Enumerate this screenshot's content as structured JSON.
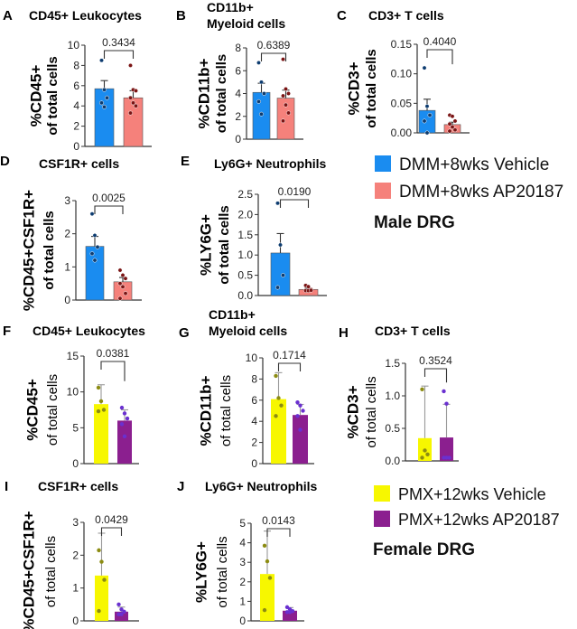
{
  "colors": {
    "vehicle_male": "#1a8cf0",
    "ap_male": "#f5817b",
    "vehicle_male_dot": "#0d3c70",
    "ap_male_dot": "#7a1414",
    "vehicle_female": "#f7f700",
    "ap_female": "#8b1f8f",
    "vehicle_female_dot": "#8c8c12",
    "ap_female_dot": "#6a30d0"
  },
  "legends": [
    {
      "items": [
        {
          "label": "DMM+8wks Vehicle",
          "color": "#1a8cf0"
        },
        {
          "label": "DMM+8wks AP20187",
          "color": "#f5817b"
        }
      ],
      "caption": "Male DRG"
    },
    {
      "items": [
        {
          "label": "PMX+12wks Vehicle",
          "color": "#f7f700"
        },
        {
          "label": "PMX+12wks AP20187",
          "color": "#8b1f8f"
        }
      ],
      "caption": "Female DRG"
    }
  ],
  "chart_data": [
    {
      "type": "bar",
      "letter": "A",
      "title": [
        "CD45+ Leukocytes"
      ],
      "ylabel": [
        "%CD45+",
        "of total cells"
      ],
      "ylim": [
        0,
        10
      ],
      "ticks": [
        0,
        2,
        4,
        6,
        8,
        10
      ],
      "tick_labels": [
        "0",
        "2",
        "4",
        "6",
        "8",
        "10"
      ],
      "pvalue": "0.3434",
      "group": "male",
      "series": [
        {
          "name": "DMM+8wks Vehicle",
          "mean": 5.7,
          "error": 0.8,
          "points": [
            8.5,
            5.6,
            4.8,
            4.3,
            3.9
          ]
        },
        {
          "name": "DMM+8wks AP20187",
          "mean": 4.8,
          "error": 0.7,
          "points": [
            8.0,
            5.6,
            5.5,
            4.8,
            4.3,
            4.0,
            3.3
          ]
        }
      ]
    },
    {
      "type": "bar",
      "letter": "B",
      "title": [
        "CD11b+",
        "Myeloid cells"
      ],
      "ylabel": [
        "%CD11b+",
        "of total cells"
      ],
      "ylim": [
        0,
        8
      ],
      "ticks": [
        0,
        2,
        4,
        6,
        8
      ],
      "tick_labels": [
        "0",
        "2",
        "4",
        "6",
        "8"
      ],
      "pvalue": "0.6389",
      "group": "male",
      "series": [
        {
          "name": "DMM+8wks Vehicle",
          "mean": 4.1,
          "error": 0.8,
          "points": [
            6.7,
            5.0,
            4.0,
            3.3,
            2.2
          ]
        },
        {
          "name": "DMM+8wks AP20187",
          "mean": 3.6,
          "error": 0.7,
          "points": [
            7.0,
            4.4,
            4.0,
            3.8,
            3.0,
            2.3,
            1.6
          ]
        }
      ]
    },
    {
      "type": "bar",
      "letter": "C",
      "title": [
        "CD3+ T cells"
      ],
      "ylabel": [
        "%CD3+",
        "of total cells"
      ],
      "ylim": [
        0,
        0.15
      ],
      "ticks": [
        0,
        0.05,
        0.1,
        0.15
      ],
      "tick_labels": [
        "0.00",
        "0.05",
        "0.10",
        "0.15"
      ],
      "pvalue": "0.4040",
      "group": "male",
      "series": [
        {
          "name": "DMM+8wks Vehicle",
          "mean": 0.038,
          "error": 0.019,
          "points": [
            0.11,
            0.045,
            0.03,
            0.02,
            0.0
          ]
        },
        {
          "name": "DMM+8wks AP20187",
          "mean": 0.014,
          "error": 0.004,
          "points": [
            0.03,
            0.028,
            0.02,
            0.015,
            0.01,
            0.005,
            0.003
          ]
        }
      ]
    },
    {
      "type": "bar",
      "letter": "D",
      "title": [
        "CSF1R+ cells"
      ],
      "ylabel": [
        "%CD45+CSF1R+",
        "of total cells"
      ],
      "ylim": [
        0,
        3
      ],
      "ticks": [
        0,
        1,
        2,
        3
      ],
      "tick_labels": [
        "0",
        "1",
        "2",
        "3"
      ],
      "pvalue": "0.0025",
      "group": "male",
      "series": [
        {
          "name": "DMM+8wks Vehicle",
          "mean": 1.62,
          "error": 0.3,
          "points": [
            2.6,
            1.95,
            1.6,
            1.4,
            1.2
          ]
        },
        {
          "name": "DMM+8wks AP20187",
          "mean": 0.55,
          "error": 0.13,
          "points": [
            0.9,
            0.75,
            0.65,
            0.5,
            0.4,
            0.2,
            0.05
          ]
        }
      ]
    },
    {
      "type": "bar",
      "letter": "E",
      "title": [
        "Ly6G+ Neutrophils"
      ],
      "ylabel": [
        "%LY6G+",
        "of total cells"
      ],
      "ylim": [
        0,
        2.5
      ],
      "ticks": [
        0,
        0.5,
        1,
        1.5,
        2,
        2.5
      ],
      "tick_labels": [
        "0.0",
        "0.5",
        "1.0",
        "1.5",
        "2.0",
        "2.5"
      ],
      "pvalue": "0.0190",
      "group": "male",
      "series": [
        {
          "name": "DMM+8wks Vehicle",
          "mean": 1.05,
          "error": 0.48,
          "points": [
            2.28,
            1.25,
            0.5,
            0.2
          ]
        },
        {
          "name": "DMM+8wks AP20187",
          "mean": 0.15,
          "error": 0.03,
          "points": [
            0.25,
            0.22,
            0.15,
            0.12,
            0.12,
            0.13
          ]
        }
      ]
    },
    {
      "type": "bar",
      "letter": "F",
      "title": [
        "CD45+ Leukocytes"
      ],
      "ylabel": [
        "%CD45+",
        "of total cells"
      ],
      "ylim": [
        0,
        15
      ],
      "ticks": [
        0,
        5,
        10,
        15
      ],
      "tick_labels": [
        "0",
        "5",
        "10",
        "15"
      ],
      "pvalue": "0.0381",
      "group": "female",
      "series": [
        {
          "name": "PMX+12wks Vehicle",
          "mean": 8.3,
          "error": 2.7,
          "points": [
            10.6,
            8.7,
            7.5,
            7.3
          ]
        },
        {
          "name": "PMX+12wks AP20187",
          "mean": 6.0,
          "error": 1.5,
          "points": [
            7.8,
            7.0,
            6.3,
            5.5,
            3.8
          ]
        }
      ]
    },
    {
      "type": "bar",
      "letter": "G",
      "title": [
        "CD11b+",
        "Myeloid cells"
      ],
      "ylabel": [
        "%CD11b+",
        "of total cells"
      ],
      "ylim": [
        0,
        10
      ],
      "ticks": [
        0,
        2,
        4,
        6,
        8,
        10
      ],
      "tick_labels": [
        "0",
        "2",
        "4",
        "6",
        "8",
        "10"
      ],
      "pvalue": "0.1714",
      "group": "female",
      "series": [
        {
          "name": "PMX+12wks Vehicle",
          "mean": 6.1,
          "error": 2.5,
          "points": [
            8.3,
            6.2,
            5.5,
            4.5
          ]
        },
        {
          "name": "PMX+12wks AP20187",
          "mean": 4.6,
          "error": 1.0,
          "points": [
            5.8,
            5.5,
            5.0,
            4.5,
            3.2
          ]
        }
      ]
    },
    {
      "type": "bar",
      "letter": "H",
      "title": [
        "CD3+ T cells"
      ],
      "ylabel": [
        "%CD3+",
        "of total cells"
      ],
      "ylim": [
        0,
        1.5
      ],
      "ticks": [
        0,
        0.5,
        1,
        1.5
      ],
      "tick_labels": [
        "0.0",
        "0.5",
        "1.0",
        "1.5"
      ],
      "pvalue": "0.3524",
      "group": "female",
      "series": [
        {
          "name": "PMX+12wks Vehicle",
          "mean": 0.35,
          "error": 0.8,
          "points": [
            1.1,
            0.16,
            0.1,
            0.05
          ]
        },
        {
          "name": "PMX+12wks AP20187",
          "mean": 0.36,
          "error": 0.51,
          "points": [
            1.07,
            0.88,
            0.05,
            0.05,
            0.05
          ]
        }
      ]
    },
    {
      "type": "bar",
      "letter": "I",
      "title": [
        "CSF1R+ cells"
      ],
      "ylabel": [
        "%CD45+CSF1R+",
        "of total cells"
      ],
      "ylim": [
        0,
        3
      ],
      "ticks": [
        0,
        1,
        2,
        3
      ],
      "tick_labels": [
        "0",
        "1",
        "2",
        "3"
      ],
      "pvalue": "0.0429",
      "group": "female",
      "series": [
        {
          "name": "PMX+12wks Vehicle",
          "mean": 1.38,
          "error": 1.29,
          "points": [
            2.15,
            1.8,
            1.25,
            0.3
          ]
        },
        {
          "name": "PMX+12wks AP20187",
          "mean": 0.28,
          "error": 0.14,
          "points": [
            0.5,
            0.35,
            0.28,
            0.2,
            0.2
          ]
        }
      ]
    },
    {
      "type": "bar",
      "letter": "J",
      "title": [
        "Ly6G+ Neutrophils"
      ],
      "ylabel": [
        "%LY6G+",
        "of total cells"
      ],
      "ylim": [
        0,
        5
      ],
      "ticks": [
        0,
        1,
        2,
        3,
        4,
        5
      ],
      "tick_labels": [
        "0",
        "1",
        "2",
        "3",
        "4",
        "5"
      ],
      "pvalue": "0.0143",
      "group": "female",
      "series": [
        {
          "name": "PMX+12wks Vehicle",
          "mean": 2.4,
          "error": 2.2,
          "points": [
            3.85,
            3.05,
            2.2,
            0.55
          ]
        },
        {
          "name": "PMX+12wks AP20187",
          "mean": 0.52,
          "error": 0.16,
          "points": [
            0.7,
            0.6,
            0.5,
            0.45,
            0.45
          ]
        }
      ]
    }
  ]
}
